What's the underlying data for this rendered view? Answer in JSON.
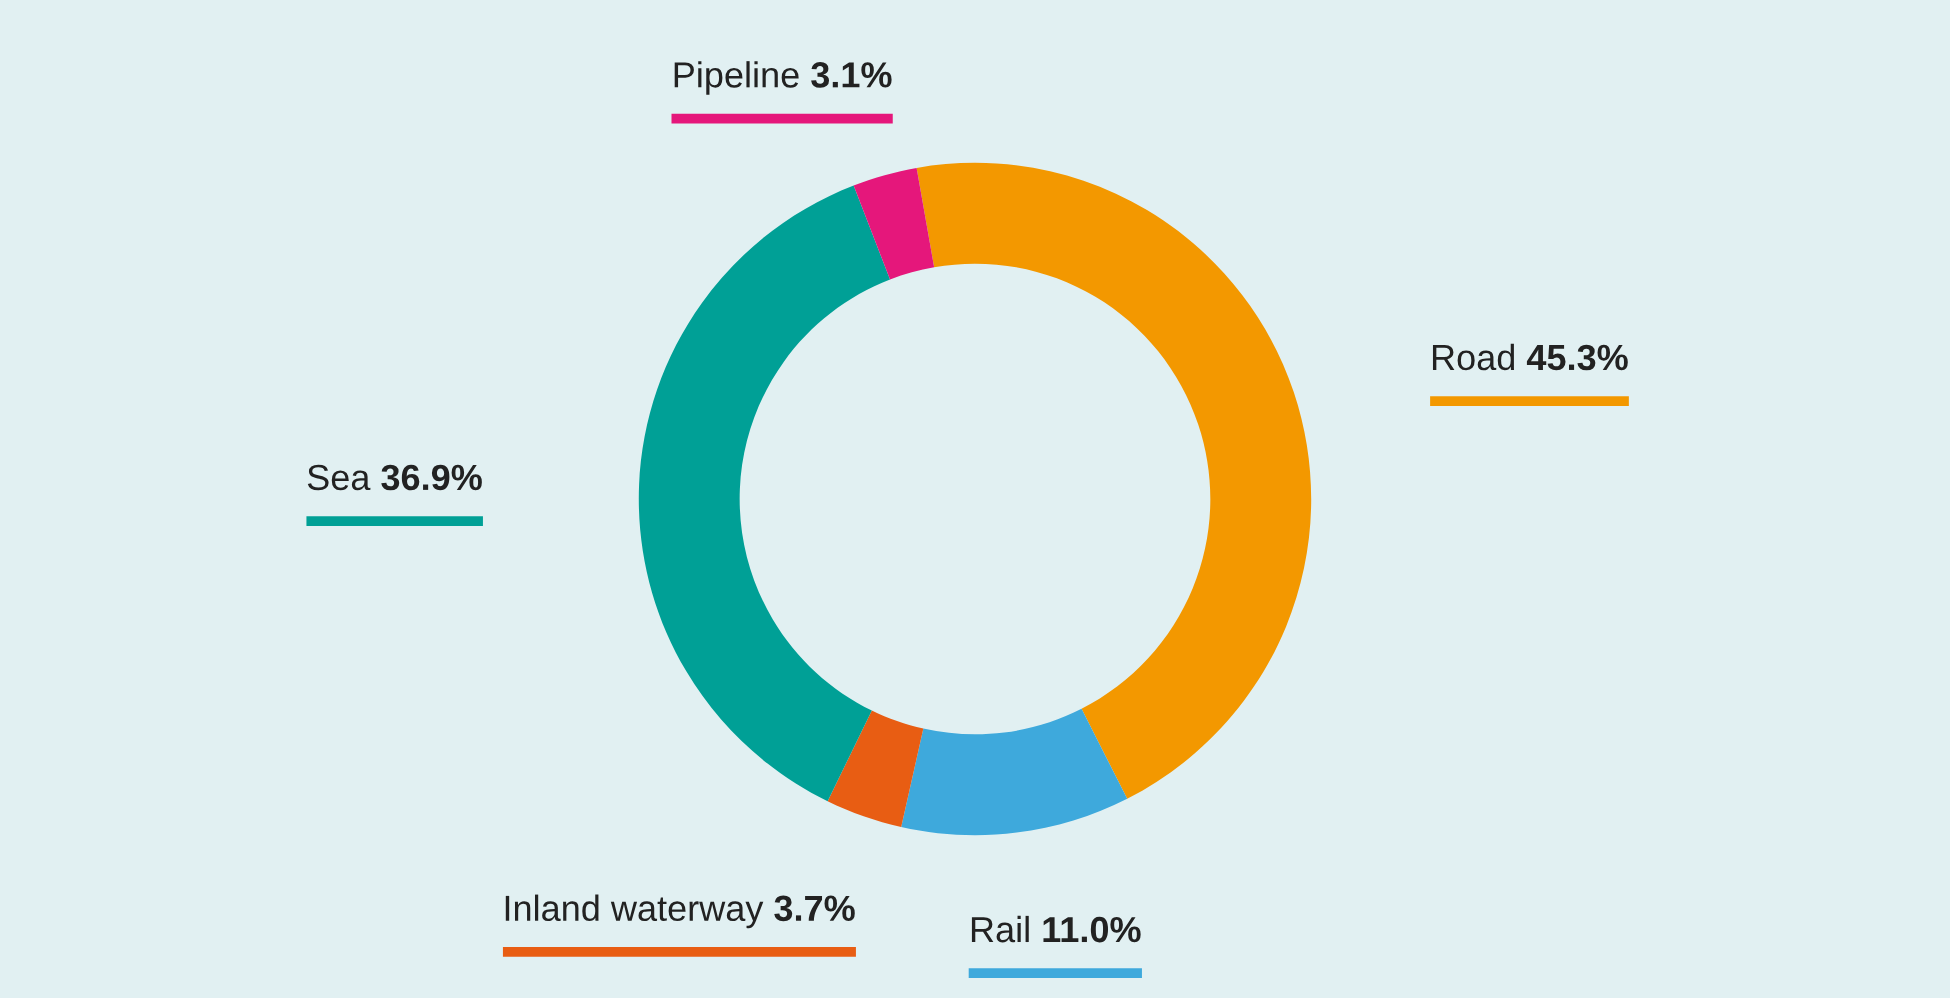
{
  "chart_data": {
    "type": "donut",
    "categories": [
      "Road",
      "Rail",
      "Inland waterway",
      "Sea",
      "Pipeline"
    ],
    "values": [
      45.3,
      11.0,
      3.7,
      36.9,
      3.1
    ],
    "value_labels": [
      "45.3%",
      "11.0%",
      "3.7%",
      "36.9%",
      "3.1%"
    ],
    "colors": [
      "#f39800",
      "#3ea9dc",
      "#e85d13",
      "#00a096",
      "#e5177b"
    ],
    "legend": false
  }
}
